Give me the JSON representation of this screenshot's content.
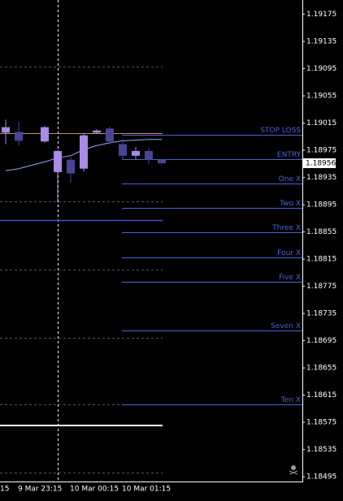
{
  "chart_data": {
    "type": "candlestick",
    "categories": [
      null,
      "9 Mar 23:15",
      null,
      null,
      null,
      "10 Mar 00:15",
      null,
      null,
      null,
      "10 Mar 01:15",
      null,
      null,
      null
    ],
    "x_edge_label": "15",
    "open": [
      1.19001,
      1.19002,
      null,
      1.18988,
      1.18943,
      1.18961,
      1.18948,
      1.19001,
      1.19007,
      1.18984,
      1.18967,
      1.18974,
      1.18961
    ],
    "high": [
      1.1902,
      1.19017,
      null,
      1.19011,
      1.18976,
      1.18965,
      1.19,
      1.19006,
      1.1901,
      1.18992,
      1.1898,
      1.18979,
      1.18962
    ],
    "low": [
      1.18984,
      1.18982,
      null,
      1.18986,
      1.18898,
      1.18927,
      1.18944,
      1.18999,
      1.18984,
      1.18962,
      1.18962,
      1.18955,
      1.18955
    ],
    "close": [
      1.19009,
      1.18989,
      null,
      1.19009,
      1.18974,
      1.18941,
      1.18997,
      1.19004,
      1.18988,
      1.18967,
      1.18974,
      1.18961,
      1.18956
    ],
    "up_color": "#a98ae6",
    "down_color": "#4b4496",
    "moving_average": {
      "color": "#8fa8ff",
      "values": [
        1.18945,
        1.18948,
        1.18953,
        1.18958,
        1.18964,
        1.18967,
        1.18976,
        1.18982,
        1.18986,
        1.18989,
        1.1899,
        1.18991,
        1.18991
      ]
    },
    "current_price": 1.18956,
    "levels": [
      {
        "name": "STOP LOSS",
        "value": 1.18998
      },
      {
        "name": "ENTRY",
        "value": 1.18962
      },
      {
        "name": "One X",
        "value": 1.18926
      },
      {
        "name": "Two X",
        "value": 1.1889
      },
      {
        "name": "Three X",
        "value": 1.18854
      },
      {
        "name": "Four X",
        "value": 1.18818
      },
      {
        "name": "Five X",
        "value": 1.18782
      },
      {
        "name": "Seven X",
        "value": 1.1871
      },
      {
        "name": "Ten X",
        "value": 1.18602
      }
    ],
    "level_color": "#4a62d8",
    "ylim": [
      1.18488,
      1.19196
    ],
    "yticks": [
      1.19175,
      1.19135,
      1.19095,
      1.19055,
      1.19015,
      1.18975,
      1.18935,
      1.18895,
      1.18855,
      1.18815,
      1.18775,
      1.18735,
      1.18695,
      1.18655,
      1.18615,
      1.18575,
      1.18535,
      1.18495
    ]
  }
}
